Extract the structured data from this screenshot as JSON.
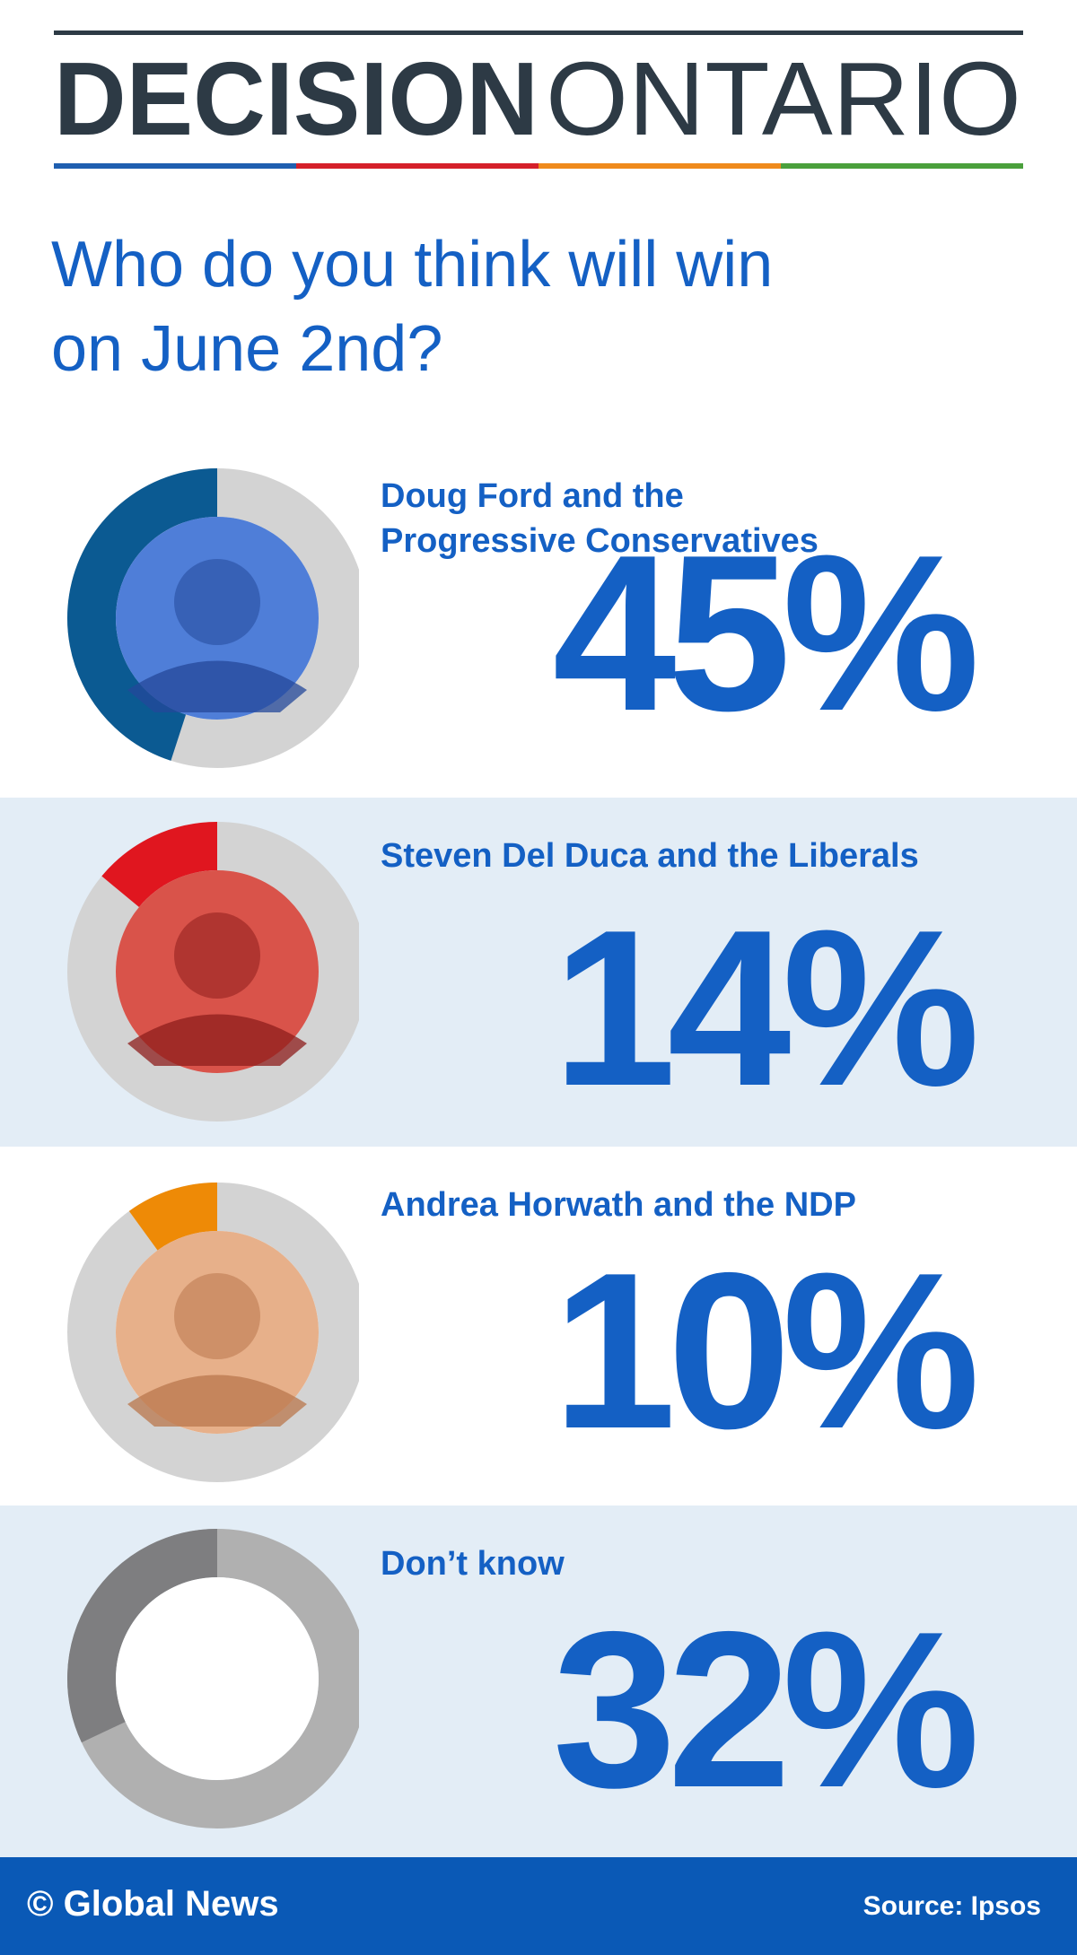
{
  "header": {
    "brand_bold": "DECISION",
    "brand_light": "ONTARIO"
  },
  "title": "Who do you think will win on June 2nd?",
  "chart_data": [
    {
      "type": "donut",
      "title": "Doug Ford and the Progressive Conservatives",
      "values": [
        45
      ],
      "value_labels": [
        "45%"
      ],
      "color": "#0b5a92",
      "track_color": "#d3d3d3"
    },
    {
      "type": "donut",
      "title": "Steven Del Duca and the Liberals",
      "values": [
        14
      ],
      "value_labels": [
        "14%"
      ],
      "color": "#e0161f",
      "track_color": "#d3d3d3"
    },
    {
      "type": "donut",
      "title": "Andrea Horwath and the NDP",
      "values": [
        10
      ],
      "value_labels": [
        "10%"
      ],
      "color": "#ee8a06",
      "track_color": "#d3d3d3"
    },
    {
      "type": "donut",
      "title": "Don’t know",
      "values": [
        32
      ],
      "value_labels": [
        "32%"
      ],
      "color": "#7e7e80",
      "track_color": "#b0b0b0"
    }
  ],
  "footer": {
    "credit": "© Global News",
    "source": "Source: Ipsos"
  }
}
